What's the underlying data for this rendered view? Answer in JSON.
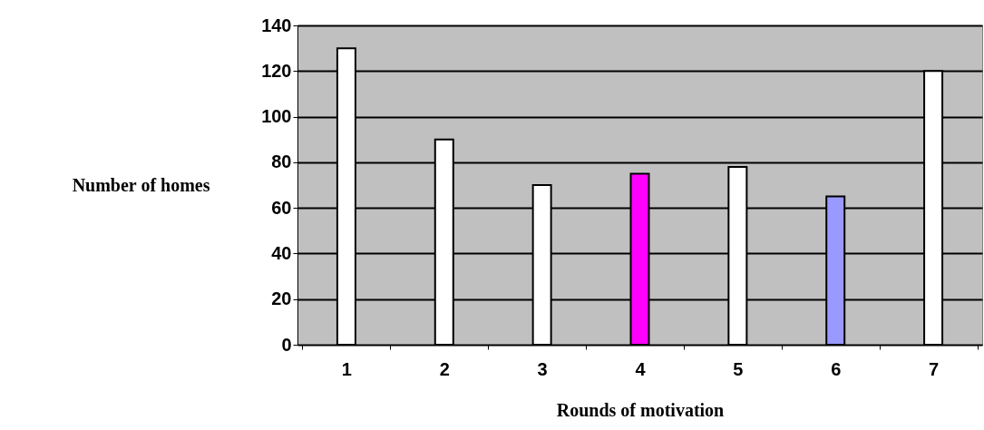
{
  "chart_data": {
    "type": "bar",
    "xlabel": "Rounds of motivation",
    "ylabel": "Number of homes",
    "categories": [
      "1",
      "2",
      "3",
      "4",
      "5",
      "6",
      "7"
    ],
    "values": [
      130,
      90,
      70,
      75,
      78,
      65,
      120
    ],
    "colors": [
      "#ffffff",
      "#ffffff",
      "#ffffff",
      "#ff00ff",
      "#ffffff",
      "#9999ff",
      "#ffffff"
    ],
    "ylim": [
      0,
      140
    ],
    "yticks": [
      0,
      20,
      40,
      60,
      80,
      100,
      120,
      140
    ],
    "grid": "y"
  }
}
